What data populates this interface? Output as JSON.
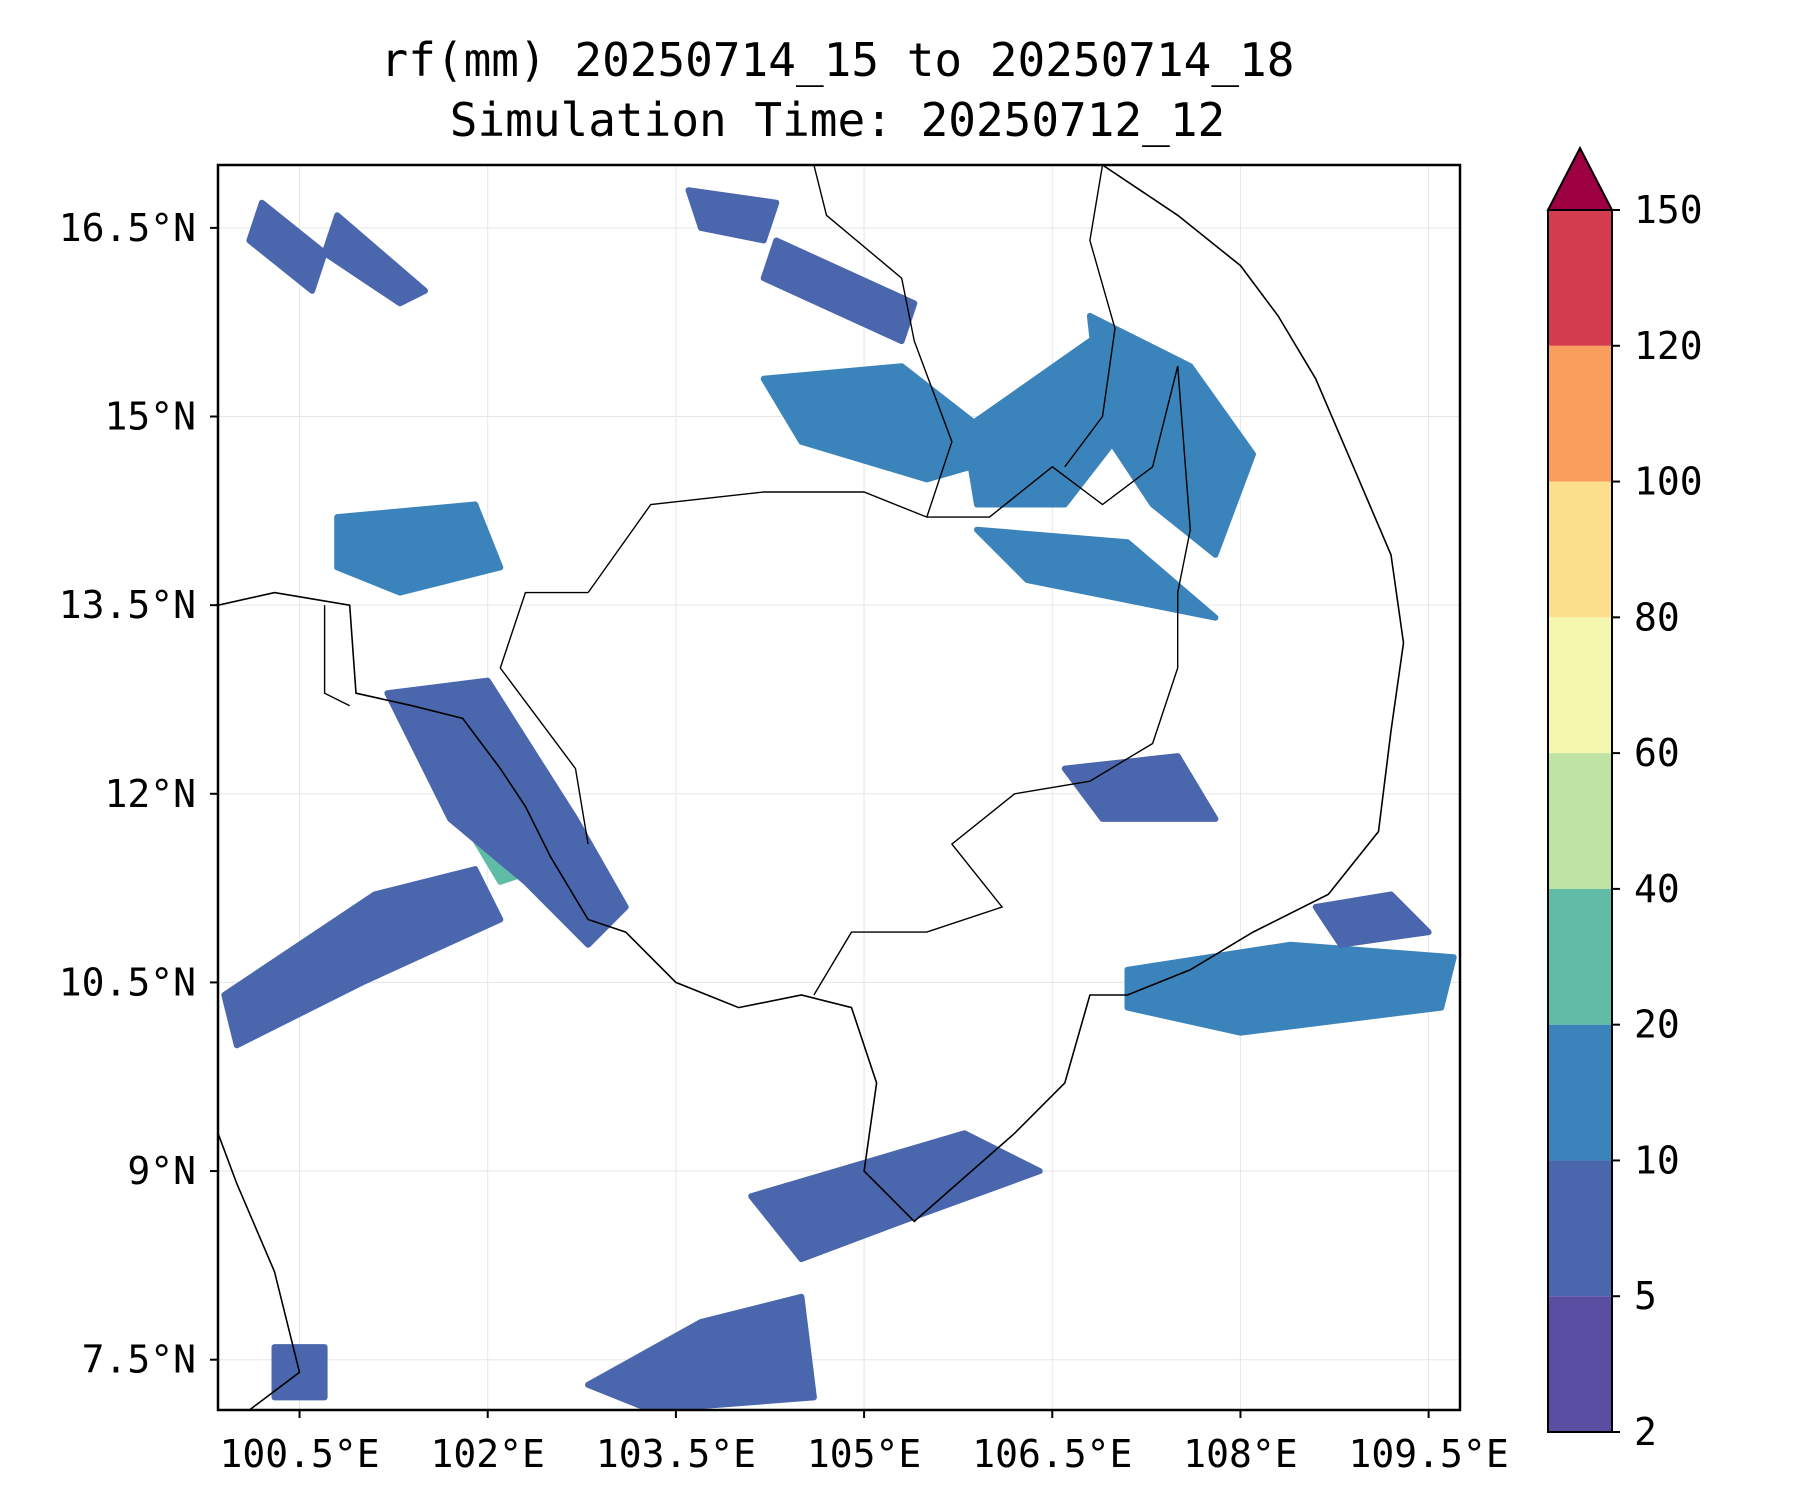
{
  "title": {
    "line1": "rf(mm) 20250714_15 to 20250714_18",
    "line2": "Simulation Time: 20250712_12"
  },
  "map": {
    "lon_range": [
      99.85,
      109.75
    ],
    "lat_range": [
      7.1,
      17.0
    ],
    "lon_ticks": [
      {
        "value": 100.5,
        "label": "100.5°E"
      },
      {
        "value": 102.0,
        "label": "102°E"
      },
      {
        "value": 103.5,
        "label": "103.5°E"
      },
      {
        "value": 105.0,
        "label": "105°E"
      },
      {
        "value": 106.5,
        "label": "106.5°E"
      },
      {
        "value": 108.0,
        "label": "108°E"
      },
      {
        "value": 109.5,
        "label": "109.5°E"
      }
    ],
    "lat_ticks": [
      {
        "value": 16.5,
        "label": "16.5°N"
      },
      {
        "value": 15.0,
        "label": "15°N"
      },
      {
        "value": 13.5,
        "label": "13.5°N"
      },
      {
        "value": 12.0,
        "label": "12°N"
      },
      {
        "value": 10.5,
        "label": "10.5°N"
      },
      {
        "value": 9.0,
        "label": "9°N"
      },
      {
        "value": 7.5,
        "label": "7.5°N"
      }
    ],
    "grid": true,
    "variable": "rf(mm)",
    "rain_areas": [
      {
        "name": "nw-thailand-band",
        "level": 5,
        "poly": [
          [
            100.2,
            16.7
          ],
          [
            100.7,
            16.3
          ],
          [
            100.6,
            16.0
          ],
          [
            100.1,
            16.4
          ]
        ]
      },
      {
        "name": "nw-thailand-band-2",
        "level": 5,
        "poly": [
          [
            100.8,
            16.6
          ],
          [
            101.5,
            16.0
          ],
          [
            101.3,
            15.9
          ],
          [
            100.7,
            16.3
          ]
        ]
      },
      {
        "name": "laos-north",
        "level": 5,
        "poly": [
          [
            103.6,
            16.8
          ],
          [
            104.3,
            16.7
          ],
          [
            104.2,
            16.4
          ],
          [
            103.7,
            16.5
          ]
        ]
      },
      {
        "name": "laos-north-2",
        "level": 5,
        "poly": [
          [
            104.3,
            16.4
          ],
          [
            105.4,
            15.9
          ],
          [
            105.3,
            15.6
          ],
          [
            104.2,
            16.1
          ]
        ]
      },
      {
        "name": "cambodia-ne-1",
        "level": 10,
        "poly": [
          [
            104.2,
            15.3
          ],
          [
            105.3,
            15.4
          ],
          [
            106.2,
            14.7
          ],
          [
            105.5,
            14.5
          ],
          [
            104.5,
            14.8
          ]
        ]
      },
      {
        "name": "cambodia-ne-2",
        "level": 10,
        "poly": [
          [
            105.8,
            14.9
          ],
          [
            106.8,
            15.6
          ],
          [
            107.3,
            15.2
          ],
          [
            106.6,
            14.3
          ],
          [
            105.9,
            14.3
          ]
        ]
      },
      {
        "name": "vietnam-highlands",
        "level": 10,
        "poly": [
          [
            106.8,
            15.8
          ],
          [
            107.6,
            15.4
          ],
          [
            108.1,
            14.7
          ],
          [
            107.8,
            13.9
          ],
          [
            107.3,
            14.3
          ],
          [
            106.9,
            14.9
          ]
        ]
      },
      {
        "name": "cambodia-e",
        "level": 10,
        "poly": [
          [
            105.9,
            14.1
          ],
          [
            107.1,
            14.0
          ],
          [
            107.8,
            13.4
          ],
          [
            107.3,
            13.5
          ],
          [
            106.3,
            13.7
          ]
        ]
      },
      {
        "name": "thailand-e",
        "level": 10,
        "poly": [
          [
            100.8,
            14.2
          ],
          [
            101.9,
            14.3
          ],
          [
            102.1,
            13.8
          ],
          [
            101.3,
            13.6
          ],
          [
            100.8,
            13.8
          ]
        ]
      },
      {
        "name": "gulf-coast-thai",
        "level": 20,
        "poly": [
          [
            101.3,
            12.6
          ],
          [
            101.7,
            12.6
          ],
          [
            102.1,
            11.9
          ],
          [
            102.4,
            11.4
          ],
          [
            102.1,
            11.3
          ],
          [
            101.8,
            11.8
          ]
        ]
      },
      {
        "name": "gulf-coast-band",
        "level": 5,
        "poly": [
          [
            101.2,
            12.8
          ],
          [
            102.0,
            12.9
          ],
          [
            102.7,
            11.8
          ],
          [
            103.1,
            11.1
          ],
          [
            102.8,
            10.8
          ],
          [
            102.3,
            11.3
          ],
          [
            101.7,
            11.8
          ]
        ]
      },
      {
        "name": "gulf-sw",
        "level": 5,
        "poly": [
          [
            99.9,
            10.4
          ],
          [
            101.1,
            11.2
          ],
          [
            101.9,
            11.4
          ],
          [
            102.1,
            11.0
          ],
          [
            101.0,
            10.5
          ],
          [
            100.0,
            10.0
          ]
        ]
      },
      {
        "name": "south-vietnam-sea",
        "level": 10,
        "poly": [
          [
            107.1,
            10.6
          ],
          [
            108.4,
            10.8
          ],
          [
            109.7,
            10.7
          ],
          [
            109.6,
            10.3
          ],
          [
            108.0,
            10.1
          ],
          [
            107.1,
            10.3
          ]
        ]
      },
      {
        "name": "sea-east",
        "level": 5,
        "poly": [
          [
            108.6,
            11.1
          ],
          [
            109.2,
            11.2
          ],
          [
            109.5,
            10.9
          ],
          [
            108.8,
            10.8
          ]
        ]
      },
      {
        "name": "cambodia-se",
        "level": 5,
        "poly": [
          [
            106.6,
            12.2
          ],
          [
            107.5,
            12.3
          ],
          [
            107.8,
            11.8
          ],
          [
            106.9,
            11.8
          ]
        ]
      },
      {
        "name": "gulf-south",
        "level": 5,
        "poly": [
          [
            104.1,
            8.8
          ],
          [
            105.8,
            9.3
          ],
          [
            106.4,
            9.0
          ],
          [
            105.3,
            8.6
          ],
          [
            104.5,
            8.3
          ]
        ]
      },
      {
        "name": "gulf-far-south",
        "level": 5,
        "poly": [
          [
            102.8,
            7.3
          ],
          [
            103.7,
            7.8
          ],
          [
            104.5,
            8.0
          ],
          [
            104.6,
            7.2
          ],
          [
            103.3,
            7.1
          ]
        ]
      },
      {
        "name": "sw-island",
        "level": 5,
        "poly": [
          [
            100.3,
            7.6
          ],
          [
            100.7,
            7.6
          ],
          [
            100.7,
            7.2
          ],
          [
            100.3,
            7.2
          ]
        ]
      }
    ],
    "coastline": [
      [
        99.85,
        13.5
      ],
      [
        100.3,
        13.6
      ],
      [
        100.9,
        13.5
      ],
      [
        100.95,
        12.8
      ],
      [
        101.4,
        12.7
      ],
      [
        101.8,
        12.6
      ],
      [
        102.1,
        12.2
      ],
      [
        102.3,
        11.9
      ],
      [
        102.5,
        11.5
      ],
      [
        102.8,
        11.0
      ],
      [
        103.1,
        10.9
      ],
      [
        103.5,
        10.5
      ],
      [
        104.0,
        10.3
      ],
      [
        104.5,
        10.4
      ],
      [
        104.9,
        10.3
      ],
      [
        105.1,
        9.7
      ],
      [
        105.0,
        9.0
      ],
      [
        105.4,
        8.6
      ],
      [
        106.2,
        9.3
      ],
      [
        106.6,
        9.7
      ],
      [
        106.8,
        10.4
      ],
      [
        107.1,
        10.4
      ],
      [
        107.6,
        10.6
      ],
      [
        108.1,
        10.9
      ],
      [
        108.7,
        11.2
      ],
      [
        109.1,
        11.7
      ],
      [
        109.2,
        12.5
      ],
      [
        109.3,
        13.2
      ],
      [
        109.2,
        13.9
      ],
      [
        108.9,
        14.6
      ],
      [
        108.6,
        15.3
      ],
      [
        108.3,
        15.8
      ],
      [
        108.0,
        16.2
      ],
      [
        107.5,
        16.6
      ],
      [
        106.9,
        17.0
      ]
    ],
    "coastline_west": [
      [
        99.85,
        9.3
      ],
      [
        100.0,
        8.9
      ],
      [
        100.3,
        8.2
      ],
      [
        100.5,
        7.4
      ],
      [
        100.1,
        7.1
      ]
    ],
    "borders": [
      [
        [
          102.8,
          13.6
        ],
        [
          103.3,
          14.3
        ],
        [
          104.2,
          14.4
        ],
        [
          105.0,
          14.4
        ],
        [
          105.5,
          14.2
        ],
        [
          106.0,
          14.2
        ],
        [
          106.5,
          14.6
        ],
        [
          106.9,
          14.3
        ],
        [
          107.3,
          14.6
        ],
        [
          107.5,
          15.4
        ]
      ],
      [
        [
          102.8,
          13.6
        ],
        [
          102.3,
          13.6
        ],
        [
          102.1,
          13.0
        ],
        [
          102.7,
          12.2
        ],
        [
          102.8,
          11.6
        ]
      ],
      [
        [
          107.5,
          15.4
        ],
        [
          107.6,
          14.1
        ],
        [
          107.5,
          13.6
        ],
        [
          107.5,
          13.0
        ],
        [
          107.3,
          12.4
        ],
        [
          106.8,
          12.1
        ],
        [
          106.2,
          12.0
        ],
        [
          105.7,
          11.6
        ],
        [
          106.1,
          11.1
        ],
        [
          105.5,
          10.9
        ],
        [
          104.9,
          10.9
        ],
        [
          104.6,
          10.4
        ]
      ],
      [
        [
          105.5,
          14.2
        ],
        [
          105.7,
          14.8
        ],
        [
          105.4,
          15.6
        ],
        [
          105.3,
          16.1
        ],
        [
          104.7,
          16.6
        ],
        [
          104.6,
          17.0
        ]
      ],
      [
        [
          106.6,
          14.6
        ],
        [
          106.9,
          15.0
        ],
        [
          107.0,
          15.7
        ],
        [
          106.8,
          16.4
        ],
        [
          106.9,
          17.0
        ]
      ],
      [
        [
          100.7,
          13.5
        ],
        [
          100.7,
          12.8
        ],
        [
          100.9,
          12.7
        ]
      ]
    ]
  },
  "colorbar": {
    "levels": [
      "2",
      "5",
      "10",
      "20",
      "40",
      "60",
      "80",
      "100",
      "120",
      "150"
    ],
    "colors": [
      "#5a4ea3",
      "#4a67ae",
      "#3b83bb",
      "#60bba7",
      "#bee3a3",
      "#f3f8ae",
      "#fbdf8d",
      "#f99e5c",
      "#d43d4f",
      "#9e0142"
    ],
    "extend": "max"
  }
}
